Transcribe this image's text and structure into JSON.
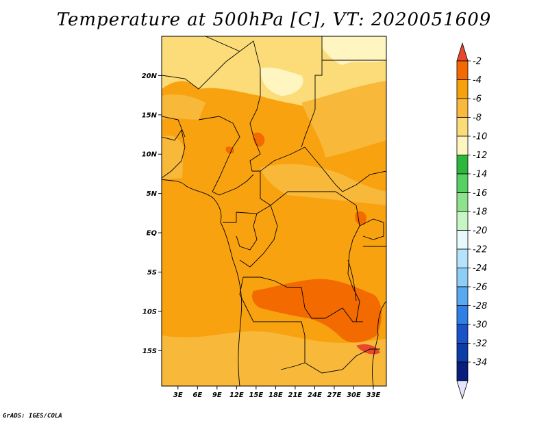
{
  "title": "Temperature at 500hPa [C], VT: 2020051609",
  "credit": "GrADS: IGES/COLA",
  "map": {
    "lat_labels": [
      "20N",
      "15N",
      "10N",
      "5N",
      "EQ",
      "5S",
      "10S",
      "15S"
    ],
    "lat_values": [
      20,
      15,
      10,
      5,
      0,
      -5,
      -10,
      -15
    ],
    "lon_labels": [
      "3E",
      "6E",
      "9E",
      "12E",
      "15E",
      "18E",
      "21E",
      "24E",
      "27E",
      "30E",
      "33E"
    ],
    "lon_values": [
      3,
      6,
      9,
      12,
      15,
      18,
      21,
      24,
      27,
      30,
      33
    ],
    "lon_range": [
      0.5,
      35
    ],
    "lat_range": [
      -19.5,
      25
    ]
  },
  "colorbar": {
    "labels": [
      "-2",
      "-4",
      "-6",
      "-8",
      "-10",
      "-12",
      "-14",
      "-16",
      "-18",
      "-20",
      "-22",
      "-24",
      "-26",
      "-28",
      "-30",
      "-32",
      "-34"
    ],
    "colors": [
      "#e8492d",
      "#f26a00",
      "#f7a10c",
      "#f8b93c",
      "#fbdc78",
      "#fff5c0",
      "#2db83d",
      "#58d063",
      "#8fe28c",
      "#c8f5c5",
      "#e6fafd",
      "#b6e3fb",
      "#8dcdf6",
      "#5aa8ef",
      "#2f80e6",
      "#1a52c9",
      "#0d3ca6",
      "#091f7e",
      "#e5e4fb"
    ]
  }
}
